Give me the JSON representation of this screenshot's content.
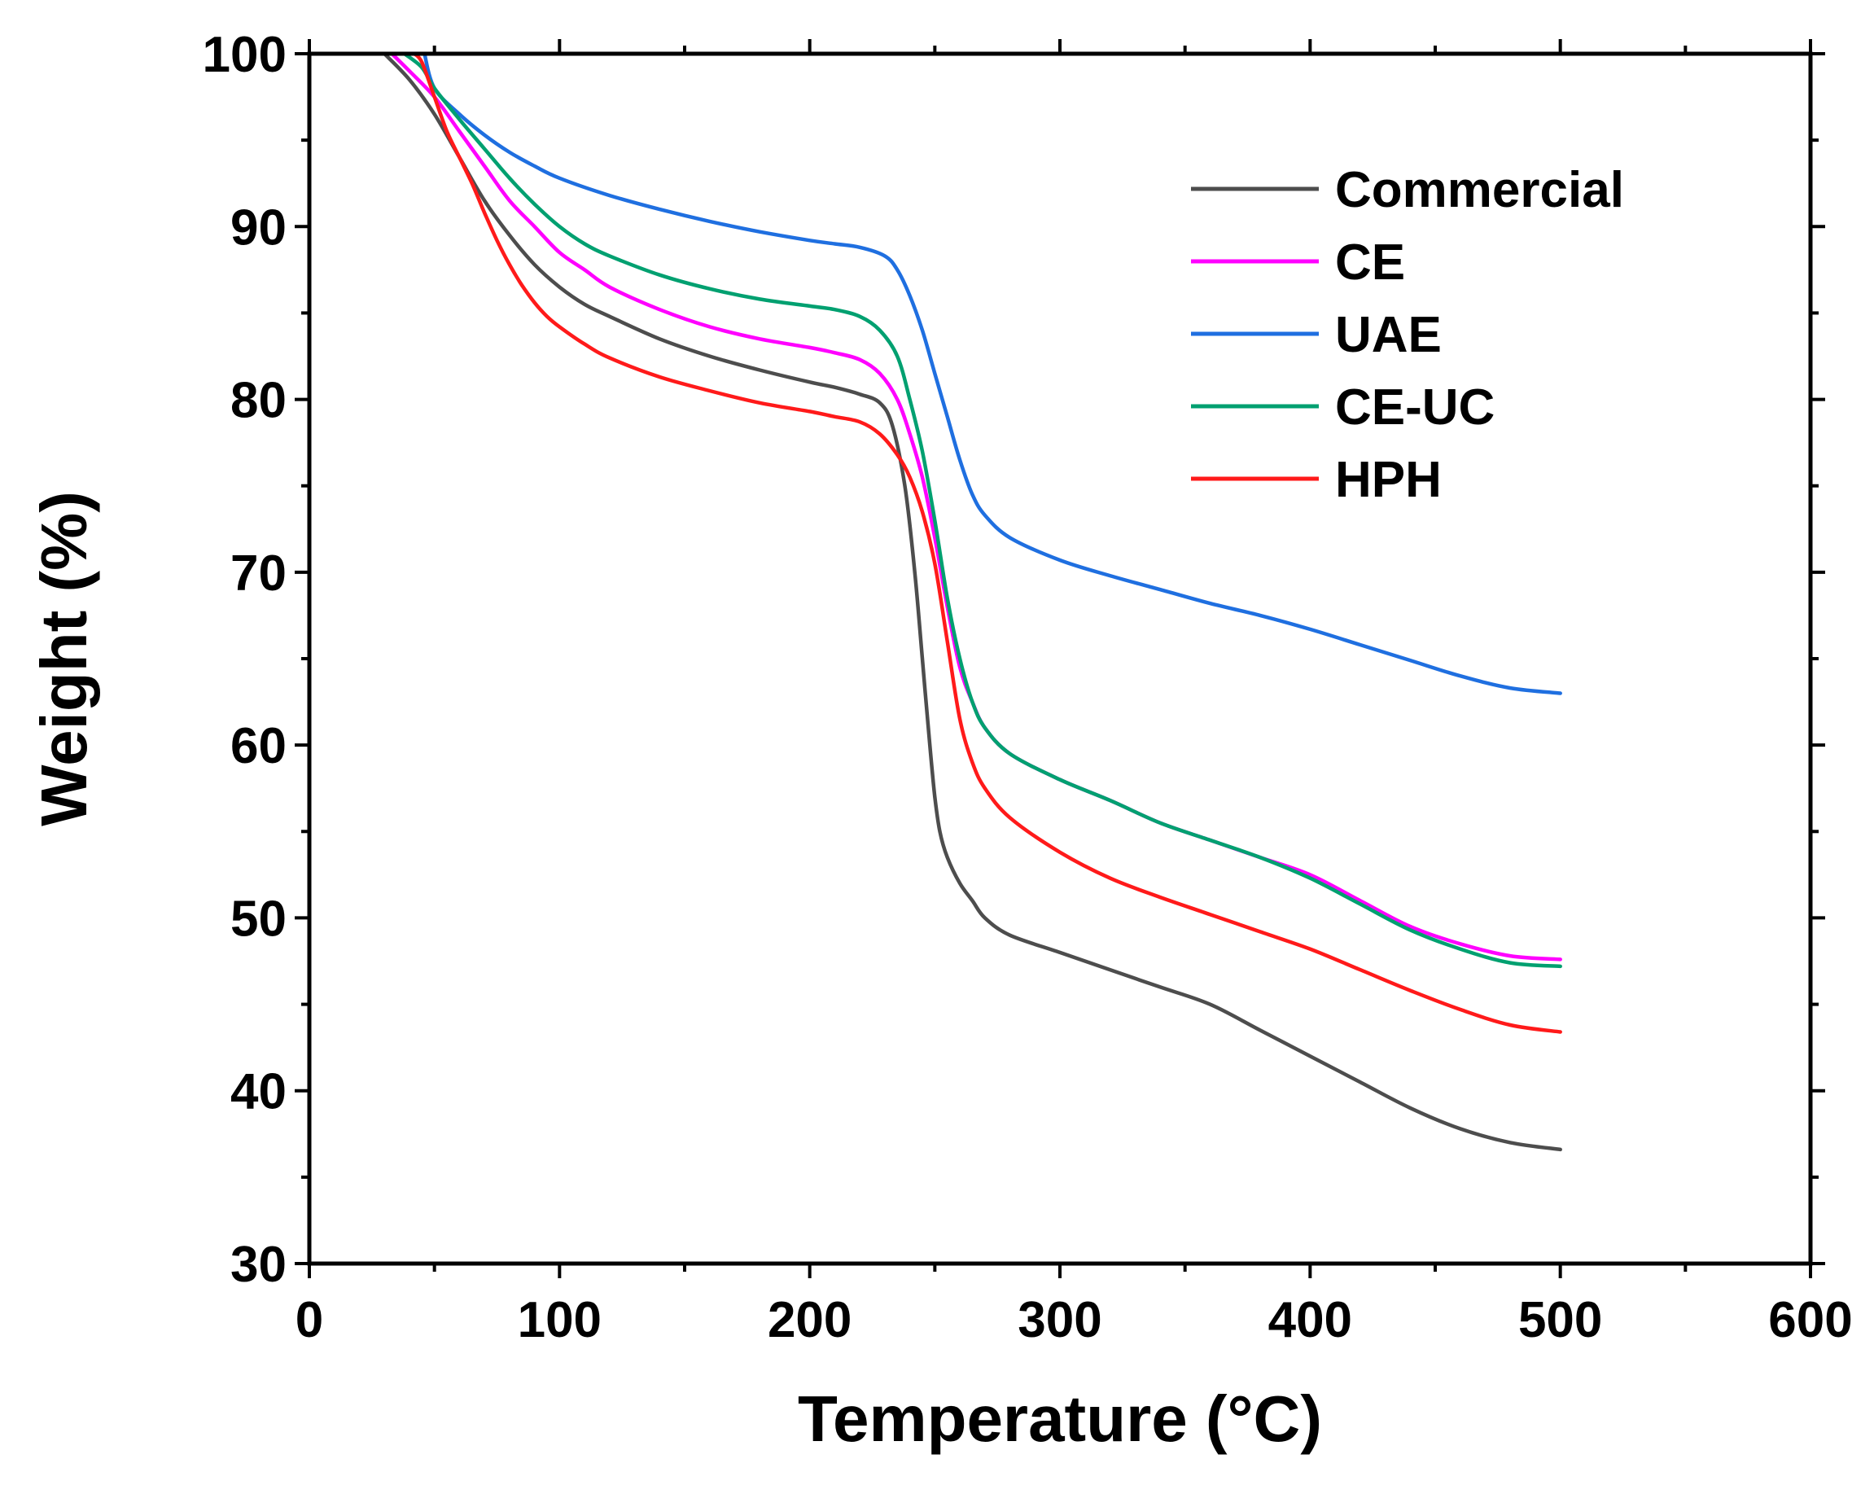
{
  "chart_data": {
    "type": "line",
    "title": "",
    "xlabel": "Temperature (°C)",
    "ylabel": "Weight (%)",
    "xlim": [
      0,
      600
    ],
    "ylim": [
      30,
      100
    ],
    "xticks": [
      0,
      100,
      200,
      300,
      400,
      500,
      600
    ],
    "yticks": [
      30,
      40,
      50,
      60,
      70,
      80,
      90,
      100
    ],
    "grid": false,
    "legend_position": "top-right",
    "series": [
      {
        "name": "Commercial",
        "color": "#4d4d4d",
        "x": [
          30,
          40,
          50,
          60,
          70,
          80,
          90,
          100,
          110,
          120,
          140,
          160,
          180,
          200,
          210,
          220,
          228,
          233,
          238,
          242,
          245,
          248,
          250,
          252,
          255,
          260,
          265,
          270,
          280,
          300,
          320,
          340,
          360,
          380,
          400,
          420,
          440,
          460,
          480,
          500
        ],
        "y": [
          100,
          98.5,
          96.5,
          94,
          91.5,
          89.5,
          87.8,
          86.5,
          85.5,
          84.8,
          83.5,
          82.5,
          81.7,
          81,
          80.7,
          80.3,
          79.8,
          78.5,
          75,
          70,
          65,
          60,
          57,
          55,
          53.5,
          52,
          51,
          50,
          49,
          48,
          47,
          46,
          45,
          43.5,
          42,
          40.5,
          39,
          37.8,
          37,
          36.6
        ]
      },
      {
        "name": "CE",
        "color": "#ff00ff",
        "x": [
          33,
          40,
          50,
          60,
          70,
          80,
          90,
          100,
          110,
          120,
          140,
          160,
          180,
          200,
          210,
          220,
          228,
          235,
          240,
          245,
          250,
          255,
          260,
          265,
          270,
          280,
          300,
          320,
          340,
          360,
          380,
          400,
          420,
          440,
          460,
          480,
          500
        ],
        "y": [
          100,
          99,
          97.5,
          95.5,
          93.5,
          91.5,
          90,
          88.5,
          87.5,
          86.5,
          85.2,
          84.2,
          83.5,
          83,
          82.7,
          82.3,
          81.5,
          80,
          78,
          75.5,
          72,
          68,
          64.5,
          62.5,
          61,
          59.5,
          58,
          56.8,
          55.5,
          54.5,
          53.5,
          52.5,
          51,
          49.5,
          48.5,
          47.8,
          47.6
        ]
      },
      {
        "name": "UAE",
        "color": "#1f6fe0",
        "x": [
          46,
          50,
          60,
          70,
          80,
          90,
          100,
          120,
          140,
          160,
          180,
          200,
          210,
          220,
          230,
          235,
          240,
          245,
          250,
          255,
          260,
          265,
          270,
          280,
          300,
          320,
          340,
          360,
          380,
          400,
          420,
          440,
          460,
          480,
          500
        ],
        "y": [
          100,
          98,
          96.5,
          95.3,
          94.3,
          93.5,
          92.8,
          91.8,
          91,
          90.3,
          89.7,
          89.2,
          89,
          88.8,
          88.3,
          87.5,
          86,
          84,
          81.5,
          79,
          76.5,
          74.5,
          73.3,
          72,
          70.7,
          69.8,
          69,
          68.2,
          67.5,
          66.7,
          65.8,
          64.9,
          64,
          63.3,
          63
        ]
      },
      {
        "name": "CE-UC",
        "color": "#00a070",
        "x": [
          38,
          45,
          50,
          60,
          70,
          80,
          90,
          100,
          110,
          120,
          140,
          160,
          180,
          200,
          210,
          220,
          228,
          235,
          240,
          245,
          250,
          255,
          260,
          265,
          270,
          280,
          300,
          320,
          340,
          360,
          380,
          400,
          420,
          440,
          460,
          480,
          500
        ],
        "y": [
          100,
          99.2,
          98,
          96.2,
          94.5,
          92.8,
          91.3,
          90,
          89,
          88.3,
          87.2,
          86.4,
          85.8,
          85.4,
          85.2,
          84.8,
          84,
          82.5,
          80,
          77,
          73,
          68.5,
          65,
          62.5,
          61,
          59.5,
          58,
          56.8,
          55.5,
          54.5,
          53.5,
          52.3,
          50.8,
          49.3,
          48.2,
          47.4,
          47.2
        ]
      },
      {
        "name": "HPH",
        "color": "#ff1a1a",
        "x": [
          42,
          45,
          50,
          55,
          60,
          65,
          70,
          75,
          80,
          85,
          90,
          95,
          100,
          110,
          120,
          140,
          160,
          180,
          200,
          210,
          220,
          228,
          235,
          240,
          245,
          250,
          255,
          260,
          265,
          270,
          280,
          300,
          320,
          340,
          360,
          380,
          400,
          420,
          440,
          460,
          480,
          500
        ],
        "y": [
          100,
          99.5,
          97.5,
          95.5,
          94,
          92.5,
          90.8,
          89.2,
          87.8,
          86.6,
          85.6,
          84.8,
          84.2,
          83.2,
          82.4,
          81.3,
          80.5,
          79.8,
          79.3,
          79,
          78.7,
          78,
          76.8,
          75.5,
          73.5,
          70.5,
          66,
          61.5,
          59,
          57.5,
          55.8,
          53.8,
          52.3,
          51.2,
          50.2,
          49.2,
          48.2,
          47,
          45.8,
          44.7,
          43.8,
          43.4
        ]
      }
    ]
  }
}
